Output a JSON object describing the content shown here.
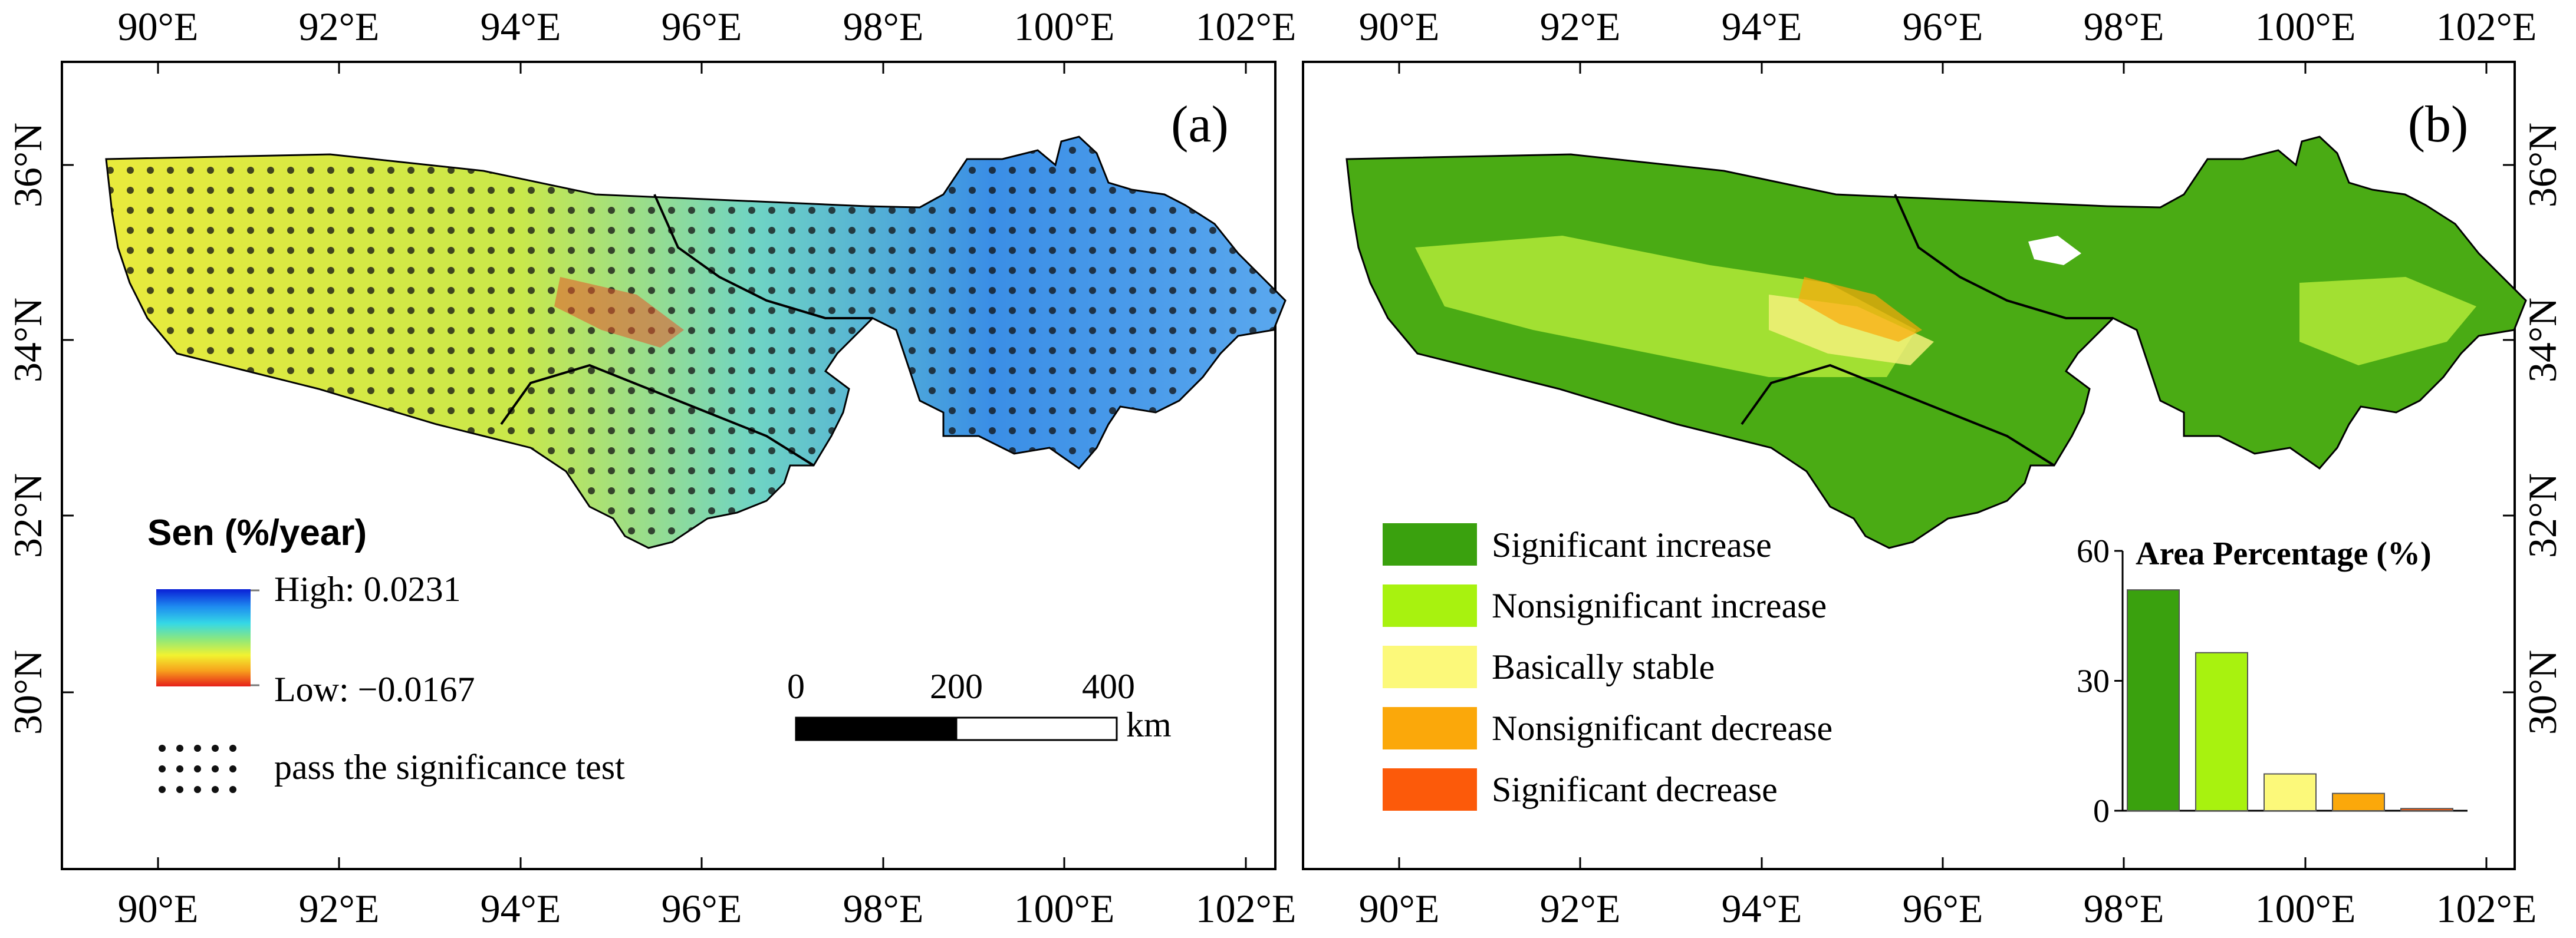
{
  "figure": {
    "lon_ticks": [
      "90°E",
      "92°E",
      "94°E",
      "96°E",
      "98°E",
      "100°E",
      "102°E"
    ],
    "lat_ticks": [
      "36°N",
      "34°N",
      "32°N",
      "30°N"
    ]
  },
  "panel_a": {
    "label": "(a)",
    "legend": {
      "title": "Sen (%/year)",
      "high_label": "High: 0.0231",
      "low_label": "Low: −0.0167",
      "significance_label": "pass the significance test",
      "gradient_colors": [
        "#0a1fd6",
        "#1e8cf0",
        "#35d8e6",
        "#8fe87a",
        "#f2f230",
        "#f7a01c",
        "#e6201a"
      ]
    },
    "scale_bar": {
      "tick_labels": [
        "0",
        "200",
        "400"
      ],
      "unit": "km"
    }
  },
  "panel_b": {
    "label": "(b)",
    "legend": {
      "items": [
        {
          "label": "Significant increase",
          "color": "#3aa10e"
        },
        {
          "label": "Nonsignificant increase",
          "color": "#a8f20f"
        },
        {
          "label": "Basically stable",
          "color": "#fcf97a"
        },
        {
          "label": "Nonsignificant decrease",
          "color": "#fba80a"
        },
        {
          "label": "Significant decrease",
          "color": "#fc5a0a"
        }
      ]
    }
  },
  "chart_data": {
    "type": "bar",
    "title": "Area Percentage (%)",
    "categories": [
      "Significant increase",
      "Nonsignificant increase",
      "Basically stable",
      "Nonsignificant decrease",
      "Significant decrease"
    ],
    "values": [
      51,
      36.5,
      8.5,
      4,
      0.5
    ],
    "colors": [
      "#3aa10e",
      "#a8f20f",
      "#fcf97a",
      "#fba80a",
      "#fc5a0a"
    ],
    "ylim": [
      0,
      60
    ],
    "yticks": [
      0,
      30,
      60
    ]
  }
}
